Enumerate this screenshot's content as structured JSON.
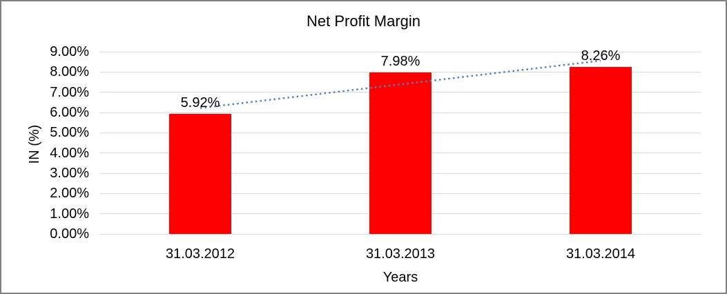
{
  "chart_data": {
    "type": "bar",
    "title": "Net Profit Margin",
    "categories": [
      "31.03.2012",
      "31.03.2013",
      "31.03.2014"
    ],
    "values": [
      5.92,
      7.98,
      8.26
    ],
    "data_labels": [
      "5.92%",
      "7.98%",
      "8.26%"
    ],
    "xlabel": "Years",
    "ylabel": "IN (%)",
    "ylim": [
      0,
      9
    ],
    "ytick_step": 1,
    "ytick_decimals": 2,
    "ytick_suffix": "%",
    "grid": true,
    "legend": "none",
    "colors": {
      "bar": "#ff0000",
      "trendline": "#4f81bd",
      "gridline": "#d9d9d9",
      "text": "#000000",
      "frame_border": "#808080",
      "background": "#ffffff"
    },
    "trendline": {
      "type": "linear",
      "line_style": "dotted",
      "fit_values": [
        6.22,
        8.56
      ]
    }
  }
}
